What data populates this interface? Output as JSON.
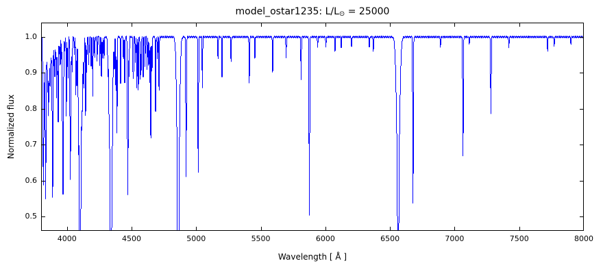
{
  "chart_data": {
    "type": "line",
    "title": "model_ostar1235: L/L⊙ = 25000",
    "title_parts": {
      "prefix": "model_ostar1235: L/L",
      "sub": "⊙",
      "suffix": " = 25000"
    },
    "xlabel": "Wavelength [ Å ]",
    "ylabel": "Normalized flux",
    "xlim": [
      3800,
      8000
    ],
    "ylim": [
      0.46,
      1.04
    ],
    "xticks": [
      4000,
      4500,
      5000,
      5500,
      6000,
      6500,
      7000,
      7500,
      8000
    ],
    "xtick_labels": [
      "4000",
      "4500",
      "5000",
      "5500",
      "6000",
      "6500",
      "7000",
      "7500",
      "8000"
    ],
    "yticks": [
      0.5,
      0.6,
      0.7,
      0.8,
      0.9,
      1.0
    ],
    "ytick_labels": [
      "0.5",
      "0.6",
      "0.7",
      "0.8",
      "0.9",
      "1.0"
    ],
    "line_color": "#0000ff",
    "grid": false,
    "legend": "none",
    "continuum": 1.0,
    "absorption_lines": [
      [
        3814,
        0.72,
        2
      ],
      [
        3819,
        0.6,
        2.5
      ],
      [
        3826,
        0.88,
        2
      ],
      [
        3835,
        0.55,
        3
      ],
      [
        3844,
        0.92,
        2
      ],
      [
        3850,
        0.85,
        2
      ],
      [
        3856,
        0.78,
        2
      ],
      [
        3862,
        0.82,
        2
      ],
      [
        3868,
        0.9,
        2
      ],
      [
        3872,
        0.88,
        2
      ],
      [
        3878,
        0.93,
        2
      ],
      [
        3883,
        0.95,
        2
      ],
      [
        3889,
        0.55,
        3
      ],
      [
        3900,
        0.92,
        2
      ],
      [
        3906,
        0.89,
        2
      ],
      [
        3913,
        0.94,
        2
      ],
      [
        3920,
        0.83,
        2
      ],
      [
        3927,
        0.9,
        2
      ],
      [
        3933,
        0.76,
        2
      ],
      [
        3941,
        0.95,
        2
      ],
      [
        3948,
        0.92,
        2
      ],
      [
        3957,
        0.94,
        2
      ],
      [
        3964,
        0.84,
        2
      ],
      [
        3970,
        0.56,
        3
      ],
      [
        3983,
        0.96,
        2
      ],
      [
        3995,
        0.78,
        2
      ],
      [
        4004,
        0.94,
        2
      ],
      [
        4009,
        0.89,
        2
      ],
      [
        4026,
        0.6,
        3
      ],
      [
        4035,
        0.93,
        2
      ],
      [
        4041,
        0.9,
        2
      ],
      [
        4058,
        0.95,
        2
      ],
      [
        4069,
        0.84,
        2
      ],
      [
        4076,
        0.87,
        2
      ],
      [
        4089,
        0.83,
        2
      ],
      [
        4097,
        0.8,
        2
      ],
      [
        4102,
        0.57,
        9
      ],
      [
        4102,
        0.55,
        3.5
      ],
      [
        4116,
        0.88,
        2
      ],
      [
        4121,
        0.85,
        2
      ],
      [
        4128,
        0.9,
        2
      ],
      [
        4132,
        0.88,
        2
      ],
      [
        4144,
        0.78,
        2
      ],
      [
        4153,
        0.9,
        2
      ],
      [
        4169,
        0.92,
        2
      ],
      [
        4187,
        0.92,
        2
      ],
      [
        4200,
        0.83,
        2
      ],
      [
        4215,
        0.94,
        2
      ],
      [
        4233,
        0.93,
        2
      ],
      [
        4254,
        0.92,
        2
      ],
      [
        4267,
        0.89,
        2
      ],
      [
        4276,
        0.94,
        2
      ],
      [
        4287,
        0.94,
        2
      ],
      [
        4317,
        0.92,
        2
      ],
      [
        4325,
        0.93,
        2
      ],
      [
        4340,
        0.55,
        10
      ],
      [
        4340,
        0.52,
        4
      ],
      [
        4350,
        0.91,
        2
      ],
      [
        4367,
        0.92,
        2
      ],
      [
        4379,
        0.85,
        2
      ],
      [
        4387,
        0.73,
        2
      ],
      [
        4415,
        0.87,
        2
      ],
      [
        4437,
        0.94,
        2
      ],
      [
        4447,
        0.87,
        2
      ],
      [
        4471,
        0.56,
        3
      ],
      [
        4481,
        0.89,
        2
      ],
      [
        4511,
        0.91,
        2
      ],
      [
        4515,
        0.9,
        2
      ],
      [
        4530,
        0.93,
        2
      ],
      [
        4541,
        0.86,
        2
      ],
      [
        4552,
        0.85,
        2
      ],
      [
        4568,
        0.88,
        2
      ],
      [
        4575,
        0.91,
        2
      ],
      [
        4590,
        0.89,
        2
      ],
      [
        4604,
        0.92,
        2
      ],
      [
        4620,
        0.91,
        2
      ],
      [
        4631,
        0.92,
        2
      ],
      [
        4640,
        0.87,
        2
      ],
      [
        4649,
        0.72,
        2
      ],
      [
        4658,
        0.9,
        2
      ],
      [
        4686,
        0.79,
        2
      ],
      [
        4700,
        0.94,
        2
      ],
      [
        4713,
        0.85,
        2
      ],
      [
        4861,
        0.56,
        10
      ],
      [
        4861,
        0.53,
        4
      ],
      [
        4922,
        0.61,
        2.5
      ],
      [
        5016,
        0.62,
        2.5
      ],
      [
        5048,
        0.86,
        2
      ],
      [
        5169,
        0.94,
        2
      ],
      [
        5200,
        0.89,
        2
      ],
      [
        5270,
        0.93,
        2
      ],
      [
        5411,
        0.87,
        2
      ],
      [
        5454,
        0.94,
        2
      ],
      [
        5592,
        0.9,
        2
      ],
      [
        5696,
        0.94,
        2
      ],
      [
        5812,
        0.88,
        2
      ],
      [
        5876,
        0.505,
        2.5
      ],
      [
        5940,
        0.97,
        2
      ],
      [
        6004,
        0.97,
        2
      ],
      [
        6074,
        0.96,
        2
      ],
      [
        6122,
        0.97,
        2
      ],
      [
        6203,
        0.97,
        2
      ],
      [
        6340,
        0.97,
        2
      ],
      [
        6371,
        0.96,
        2
      ],
      [
        6563,
        0.62,
        12
      ],
      [
        6563,
        0.6,
        4
      ],
      [
        6678,
        0.535,
        2.5
      ],
      [
        6890,
        0.97,
        2
      ],
      [
        7065,
        0.665,
        2.5
      ],
      [
        7113,
        0.98,
        2
      ],
      [
        7281,
        0.785,
        2.5
      ],
      [
        7420,
        0.97,
        2
      ],
      [
        7720,
        0.96,
        2
      ],
      [
        7770,
        0.97,
        2
      ],
      [
        7900,
        0.98,
        2
      ]
    ]
  }
}
